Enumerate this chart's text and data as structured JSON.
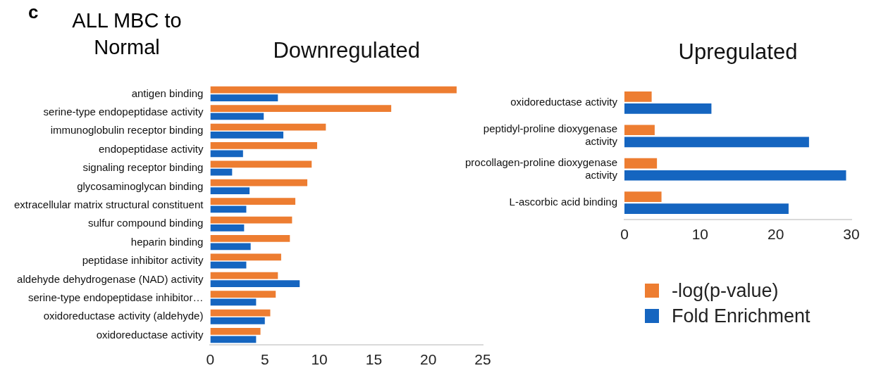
{
  "chart_data": [
    {
      "type": "bar",
      "orientation": "horizontal",
      "title": "Downregulated",
      "annotations": [
        "c",
        "ALL MBC to Normal"
      ],
      "categories": [
        "antigen binding",
        "serine-type endopeptidase activity",
        "immunoglobulin receptor binding",
        "endopeptidase activity",
        "signaling receptor binding",
        "glycosaminoglycan binding",
        "extracellular matrix structural constituent",
        "sulfur compound binding",
        "heparin binding",
        "peptidase inhibitor activity",
        "aldehyde dehydrogenase (NAD) activity",
        "serine-type endopeptidase inhibitor…",
        "oxidoreductase activity (aldehyde)",
        "oxidoreductase activity"
      ],
      "series": [
        {
          "color": "#ed7d31",
          "values": [
            22.6,
            16.6,
            10.6,
            9.8,
            9.3,
            8.9,
            7.8,
            7.5,
            7.3,
            6.5,
            6.2,
            6.0,
            5.5,
            4.6
          ]
        },
        {
          "color": "#1565c0",
          "values": [
            6.2,
            4.9,
            6.7,
            3.0,
            2.0,
            3.6,
            3.3,
            3.1,
            3.7,
            3.3,
            8.2,
            4.2,
            5.0,
            4.2
          ]
        }
      ],
      "xlim": [
        0,
        25
      ],
      "xticks": [
        0,
        5,
        10,
        15,
        20,
        25
      ],
      "grid": false,
      "legend": false
    },
    {
      "type": "bar",
      "orientation": "horizontal",
      "title": "Upregulated",
      "categories": [
        "oxidoreductase activity",
        "peptidyl-proline dioxygenase activity",
        "procollagen-proline dioxygenase activity",
        "L-ascorbic acid binding"
      ],
      "series": [
        {
          "name": "-log(p-value)",
          "color": "#ed7d31",
          "values": [
            3.6,
            4.0,
            4.3,
            4.9
          ]
        },
        {
          "name": "Fold Enrichment",
          "color": "#1565c0",
          "values": [
            11.5,
            24.4,
            29.3,
            21.7
          ]
        }
      ],
      "xlim": [
        0,
        30
      ],
      "xticks": [
        0,
        10,
        20,
        30
      ],
      "grid": false,
      "legend": "bottom"
    }
  ]
}
